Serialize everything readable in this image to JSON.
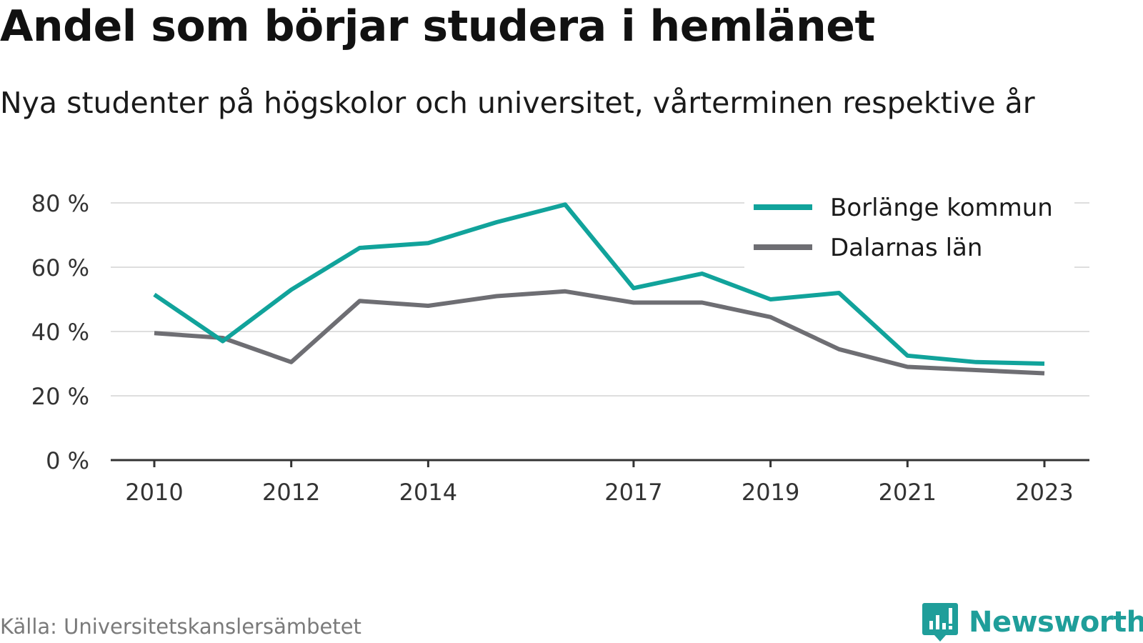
{
  "title": "Andel som börjar studera i hemlänet",
  "subtitle": "Nya studenter på högskolor och universitet, vårterminen respektive år",
  "source": "Källa: Universitetskanslersämbetet",
  "brand": {
    "name": "Newsworthy",
    "icon": "newsworthy-logo-icon",
    "color": "#1f9e9a"
  },
  "chart_data": {
    "type": "line",
    "x": [
      2010,
      2011,
      2012,
      2013,
      2014,
      2015,
      2016,
      2017,
      2018,
      2019,
      2020,
      2021,
      2022,
      2023
    ],
    "x_tick_labels": [
      "2010",
      "2012",
      "2014",
      "2017",
      "2019",
      "2021",
      "2023"
    ],
    "y_tick_labels": [
      "0 %",
      "20 %",
      "40 %",
      "60 %",
      "80 %"
    ],
    "ylim": [
      0,
      80
    ],
    "grid": true,
    "legend_position": "top-right",
    "series": [
      {
        "name": "Borlänge kommun",
        "color": "#11a39b",
        "values": [
          51.5,
          37,
          53,
          66,
          67.5,
          74,
          79.5,
          53.5,
          58,
          50,
          52,
          32.5,
          30.5,
          30
        ]
      },
      {
        "name": "Dalarnas län",
        "color": "#6e6e73",
        "values": [
          39.5,
          38,
          30.5,
          49.5,
          48,
          51,
          52.5,
          49,
          49,
          44.5,
          34.5,
          29,
          28,
          27
        ]
      }
    ]
  }
}
